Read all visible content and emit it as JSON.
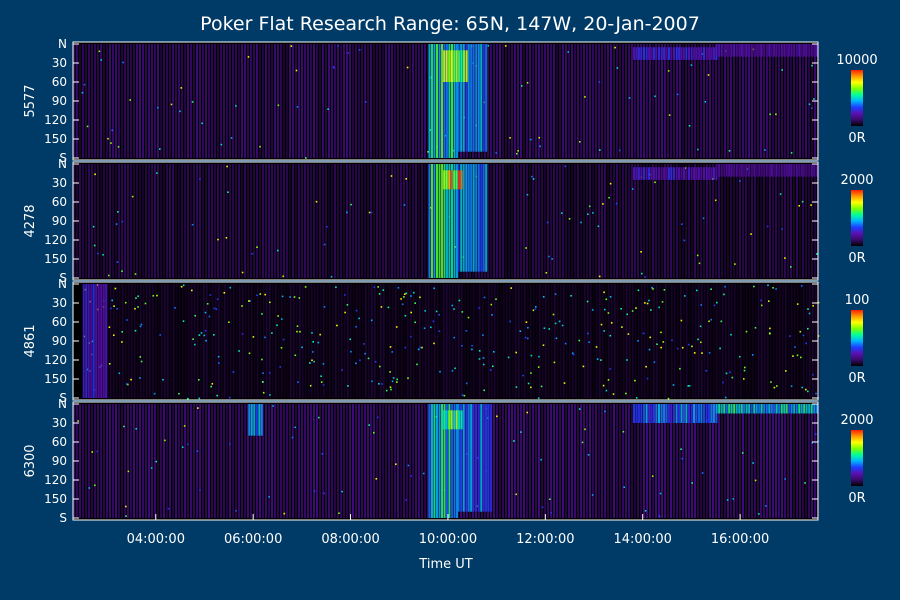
{
  "chart_data": {
    "type": "heatmap",
    "title": "Poker Flat Research Range: 65N, 147W, 20-Jan-2007",
    "xlabel": "Time UT",
    "x_ticks": [
      "04:00:00",
      "06:00:00",
      "08:00:00",
      "10:00:00",
      "12:00:00",
      "14:00:00",
      "16:00:00"
    ],
    "x_tick_hours": [
      4,
      6,
      8,
      10,
      12,
      14,
      16
    ],
    "x_range_hours": [
      2.3,
      17.6
    ],
    "y_range_deg": [
      0,
      180
    ],
    "y_ticks": [
      "N",
      "30",
      "60",
      "90",
      "120",
      "150",
      "S"
    ],
    "y_tick_values": [
      0,
      30,
      60,
      90,
      120,
      150,
      180
    ],
    "colorscale": [
      "#000000",
      "#3a0a6a",
      "#5a10b0",
      "#1e3cff",
      "#00b4ff",
      "#00ff9a",
      "#7dff00",
      "#ffff00",
      "#ff9a00",
      "#ff2000"
    ],
    "panels": [
      {
        "ylabel": "5577",
        "cbar_max": "10000",
        "cbar_min": "0R",
        "intensity_scale": 10000,
        "data_start_hour": 2.3,
        "sporadic": 0.1,
        "background": 0.5,
        "features": [
          {
            "t": [
              9.6,
              10.2
            ],
            "lat": [
              0,
              180
            ],
            "level": 0.6
          },
          {
            "t": [
              10.2,
              10.8
            ],
            "lat": [
              0,
              170
            ],
            "level": 0.45
          },
          {
            "t": [
              9.9,
              10.4
            ],
            "lat": [
              10,
              60
            ],
            "level": 0.75
          },
          {
            "t": [
              13.8,
              15.5
            ],
            "lat": [
              5,
              25
            ],
            "level": 0.3
          },
          {
            "t": [
              15.5,
              17.6
            ],
            "lat": [
              0,
              20
            ],
            "level": 0.22
          }
        ]
      },
      {
        "ylabel": "4278",
        "cbar_max": "2000",
        "cbar_min": "0R",
        "intensity_scale": 2000,
        "data_start_hour": 2.3,
        "sporadic": 0.1,
        "background": 0.35,
        "features": [
          {
            "t": [
              9.6,
              10.2
            ],
            "lat": [
              0,
              180
            ],
            "level": 0.62
          },
          {
            "t": [
              10.2,
              10.8
            ],
            "lat": [
              0,
              170
            ],
            "level": 0.45
          },
          {
            "t": [
              9.9,
              10.3
            ],
            "lat": [
              10,
              40
            ],
            "level": 0.9
          },
          {
            "t": [
              13.8,
              15.5
            ],
            "lat": [
              5,
              25
            ],
            "level": 0.28
          },
          {
            "t": [
              15.5,
              17.6
            ],
            "lat": [
              0,
              20
            ],
            "level": 0.2
          }
        ]
      },
      {
        "ylabel": "4861",
        "cbar_max": "100",
        "cbar_min": "0R",
        "intensity_scale": 100,
        "data_start_hour": 2.5,
        "sporadic": 0.45,
        "background": 0.2,
        "features": [
          {
            "t": [
              2.5,
              3.0
            ],
            "lat": [
              0,
              180
            ],
            "level": 0.3
          }
        ]
      },
      {
        "ylabel": "6300",
        "cbar_max": "2000",
        "cbar_min": "0R",
        "intensity_scale": 2000,
        "data_start_hour": 2.3,
        "sporadic": 0.1,
        "background": 0.55,
        "features": [
          {
            "t": [
              5.9,
              6.2
            ],
            "lat": [
              0,
              50
            ],
            "level": 0.5
          },
          {
            "t": [
              9.6,
              10.2
            ],
            "lat": [
              0,
              180
            ],
            "level": 0.55
          },
          {
            "t": [
              10.2,
              10.9
            ],
            "lat": [
              0,
              170
            ],
            "level": 0.45
          },
          {
            "t": [
              9.9,
              10.3
            ],
            "lat": [
              10,
              40
            ],
            "level": 0.7
          },
          {
            "t": [
              13.8,
              15.5
            ],
            "lat": [
              0,
              30
            ],
            "level": 0.42
          },
          {
            "t": [
              15.5,
              17.6
            ],
            "lat": [
              0,
              15
            ],
            "level": 0.55
          }
        ]
      }
    ]
  }
}
